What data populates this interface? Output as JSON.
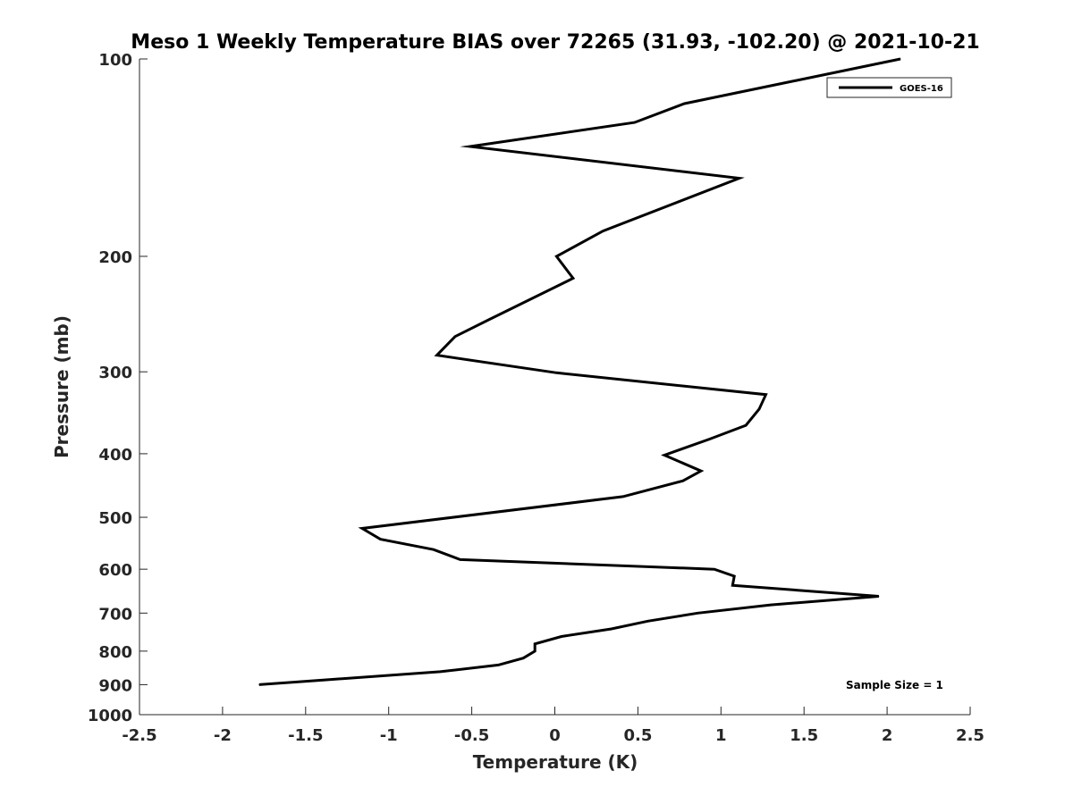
{
  "chart_data": {
    "type": "line",
    "title": "Meso 1 Weekly Temperature BIAS over 72265 (31.93, -102.20) @ 2021-10-21",
    "xlabel": "Temperature (K)",
    "ylabel": "Pressure (mb)",
    "xlim": [
      -2.5,
      2.5
    ],
    "ylim": [
      1000,
      100
    ],
    "yscale": "log",
    "y_reversed": true,
    "grid": false,
    "xticks": [
      -2.5,
      -2,
      -1.5,
      -1,
      -0.5,
      0,
      0.5,
      1,
      1.5,
      2,
      2.5
    ],
    "xtick_labels": [
      "-2.5",
      "-2",
      "-1.5",
      "-1",
      "-0.5",
      "0",
      "0.5",
      "1",
      "1.5",
      "2",
      "2.5"
    ],
    "yticks": [
      100,
      200,
      300,
      400,
      500,
      600,
      700,
      800,
      900,
      1000
    ],
    "ytick_labels": [
      "100",
      "200",
      "300",
      "400",
      "500",
      "600",
      "700",
      "800",
      "900",
      "1000"
    ],
    "legend_position": "top-right",
    "series": [
      {
        "name": "GOES-16",
        "color": "#000000",
        "points": [
          {
            "x": 2.08,
            "y": 100
          },
          {
            "x": 0.78,
            "y": 117
          },
          {
            "x": 0.48,
            "y": 125
          },
          {
            "x": -0.51,
            "y": 136
          },
          {
            "x": 1.11,
            "y": 152
          },
          {
            "x": 0.29,
            "y": 183
          },
          {
            "x": 0.01,
            "y": 200
          },
          {
            "x": 0.11,
            "y": 216
          },
          {
            "x": -0.4,
            "y": 250
          },
          {
            "x": -0.6,
            "y": 265
          },
          {
            "x": -0.71,
            "y": 283
          },
          {
            "x": 0.01,
            "y": 301
          },
          {
            "x": 1.27,
            "y": 325
          },
          {
            "x": 1.23,
            "y": 342
          },
          {
            "x": 1.15,
            "y": 362
          },
          {
            "x": 0.93,
            "y": 380
          },
          {
            "x": 0.66,
            "y": 402
          },
          {
            "x": 0.88,
            "y": 425
          },
          {
            "x": 0.77,
            "y": 440
          },
          {
            "x": 0.41,
            "y": 465
          },
          {
            "x": -1.16,
            "y": 520
          },
          {
            "x": -1.05,
            "y": 540
          },
          {
            "x": -0.73,
            "y": 560
          },
          {
            "x": -0.57,
            "y": 580
          },
          {
            "x": 0.96,
            "y": 600
          },
          {
            "x": 1.08,
            "y": 615
          },
          {
            "x": 1.07,
            "y": 635
          },
          {
            "x": 1.95,
            "y": 660
          },
          {
            "x": 1.3,
            "y": 680
          },
          {
            "x": 0.86,
            "y": 700
          },
          {
            "x": 0.56,
            "y": 720
          },
          {
            "x": 0.34,
            "y": 740
          },
          {
            "x": 0.04,
            "y": 760
          },
          {
            "x": -0.12,
            "y": 780
          },
          {
            "x": -0.12,
            "y": 800
          },
          {
            "x": -0.19,
            "y": 820
          },
          {
            "x": -0.34,
            "y": 840
          },
          {
            "x": -0.69,
            "y": 860
          },
          {
            "x": -1.78,
            "y": 900
          }
        ]
      }
    ],
    "annotations": [
      "Sample Size = 1"
    ]
  }
}
